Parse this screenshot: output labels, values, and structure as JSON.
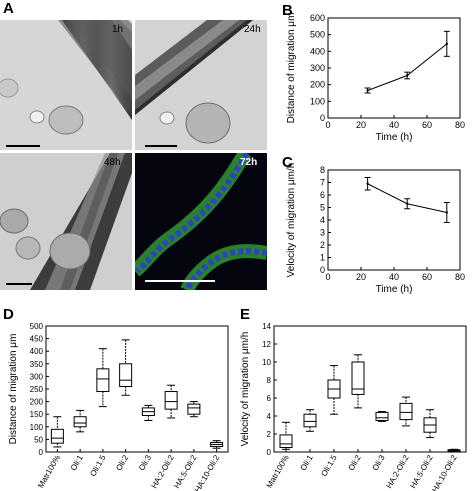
{
  "panels": {
    "a": "A",
    "b": "B",
    "c": "C",
    "d": "D",
    "e": "E"
  },
  "micrographs": [
    {
      "time": "1h"
    },
    {
      "time": "24h"
    },
    {
      "time": "48h"
    },
    {
      "time": "72h"
    }
  ],
  "chart_data": [
    {
      "id": "B",
      "type": "line",
      "x": [
        24,
        48,
        72
      ],
      "y": [
        165,
        255,
        445
      ],
      "err": [
        15,
        20,
        75
      ],
      "xlabel": "Time (h)",
      "ylabel": "Distance of migration μm",
      "xlim": [
        0,
        80
      ],
      "ylim": [
        0,
        600
      ],
      "xticks": [
        0,
        20,
        40,
        60,
        80
      ],
      "xtick_labels": [
        "0",
        "20",
        "40",
        "60",
        "80"
      ],
      "yticks": [
        0,
        100,
        200,
        300,
        400,
        500,
        600
      ],
      "ytick_labels": [
        "0",
        "100",
        "200",
        "300",
        "400",
        "500",
        "600"
      ],
      "grid": false
    },
    {
      "id": "C",
      "type": "line",
      "x": [
        24,
        48,
        72
      ],
      "y": [
        6.9,
        5.3,
        4.6
      ],
      "err": [
        0.5,
        0.4,
        0.8
      ],
      "xlabel": "Time (h)",
      "ylabel": "Velocity of migration μm/h",
      "xlim": [
        0,
        80
      ],
      "ylim": [
        0,
        8
      ],
      "xticks": [
        0,
        20,
        40,
        60,
        80
      ],
      "xtick_labels": [
        "0",
        "20",
        "40",
        "60",
        "80"
      ],
      "yticks": [
        0,
        1,
        2,
        3,
        4,
        5,
        6,
        7,
        8
      ],
      "ytick_labels": [
        "0",
        "1",
        "2",
        "3",
        "4",
        "5",
        "6",
        "7",
        "8"
      ],
      "grid": false
    },
    {
      "id": "D",
      "type": "box",
      "categories": [
        "Matr100%",
        "Oli:1",
        "Oli:1.5",
        "Oli:2",
        "Oli:3",
        "HA:2-Oli:2",
        "HA:5-Oli:2",
        "HA:10-Oli:2"
      ],
      "boxes": [
        {
          "min": 20,
          "q1": 35,
          "median": 55,
          "q3": 90,
          "max": 140
        },
        {
          "min": 80,
          "q1": 100,
          "median": 115,
          "q3": 140,
          "max": 165
        },
        {
          "min": 180,
          "q1": 240,
          "median": 290,
          "q3": 330,
          "max": 410
        },
        {
          "min": 225,
          "q1": 260,
          "median": 285,
          "q3": 350,
          "max": 445
        },
        {
          "min": 125,
          "q1": 145,
          "median": 160,
          "q3": 175,
          "max": 185
        },
        {
          "min": 135,
          "q1": 170,
          "median": 200,
          "q3": 240,
          "max": 265
        },
        {
          "min": 140,
          "q1": 150,
          "median": 175,
          "q3": 190,
          "max": 200
        },
        {
          "min": 15,
          "q1": 22,
          "median": 30,
          "q3": 38,
          "max": 45
        }
      ],
      "ylabel": "Distance of migration μm",
      "ylim": [
        0,
        500
      ],
      "yticks": [
        0,
        50,
        100,
        150,
        200,
        250,
        300,
        350,
        400,
        450,
        500
      ],
      "ytick_labels": [
        "0",
        "50",
        "100",
        "150",
        "200",
        "250",
        "300",
        "350",
        "400",
        "450",
        "500"
      ],
      "grid": false
    },
    {
      "id": "E",
      "type": "box",
      "categories": [
        "Matr100%",
        "Oli:1",
        "Oli:1.5",
        "Oli:2",
        "Oli:3",
        "HA:2-Oli:2",
        "HA:5-Oli:2",
        "HA:10-Oli:2"
      ],
      "boxes": [
        {
          "min": 0.3,
          "q1": 0.5,
          "median": 0.9,
          "q3": 1.9,
          "max": 3.3
        },
        {
          "min": 2.3,
          "q1": 2.8,
          "median": 3.4,
          "q3": 4.2,
          "max": 4.7
        },
        {
          "min": 4.2,
          "q1": 6.0,
          "median": 7.0,
          "q3": 8.0,
          "max": 9.6
        },
        {
          "min": 4.9,
          "q1": 6.4,
          "median": 7.0,
          "q3": 10.0,
          "max": 10.8
        },
        {
          "min": 3.4,
          "q1": 3.5,
          "median": 3.8,
          "q3": 4.4,
          "max": 4.5
        },
        {
          "min": 2.9,
          "q1": 3.6,
          "median": 4.4,
          "q3": 5.4,
          "max": 6.1
        },
        {
          "min": 1.6,
          "q1": 2.2,
          "median": 3.0,
          "q3": 3.8,
          "max": 4.7
        },
        {
          "min": 0.05,
          "q1": 0.1,
          "median": 0.15,
          "q3": 0.25,
          "max": 0.3
        }
      ],
      "ylabel": "Velocity of migration μm/h",
      "ylim": [
        0,
        14
      ],
      "yticks": [
        0,
        2,
        4,
        6,
        8,
        10,
        12,
        14
      ],
      "ytick_labels": [
        "0",
        "2",
        "4",
        "6",
        "8",
        "10",
        "12",
        "14"
      ],
      "grid": false
    }
  ]
}
